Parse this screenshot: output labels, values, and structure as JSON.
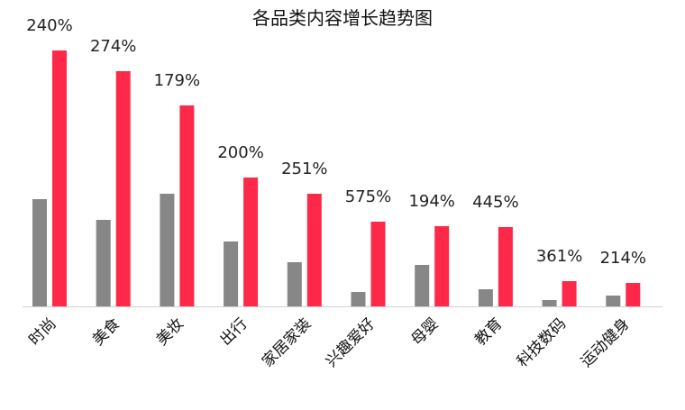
{
  "chart_data": {
    "type": "bar",
    "title": "各品类内容增长趋势图",
    "xlabel": "",
    "ylabel": "",
    "categories": [
      "时尚",
      "美食",
      "美妆",
      "出行",
      "家居家装",
      "兴趣爱好",
      "母婴",
      "教育",
      "科技数码",
      "运动健身"
    ],
    "series": [
      {
        "color": "#878787",
        "values": [
          119,
          96,
          125,
          72,
          49,
          16,
          46,
          19,
          7,
          12
        ]
      },
      {
        "color": "#fe2848",
        "values": [
          284,
          261,
          223,
          143,
          125,
          94,
          89,
          88,
          28,
          26
        ]
      }
    ],
    "data_labels": [
      "240%",
      "274%",
      "179%",
      "200%",
      "251%",
      "575%",
      "194%",
      "445%",
      "361%",
      "214%"
    ],
    "ylim": [
      0,
      300
    ],
    "grid": false,
    "legend": "none"
  }
}
